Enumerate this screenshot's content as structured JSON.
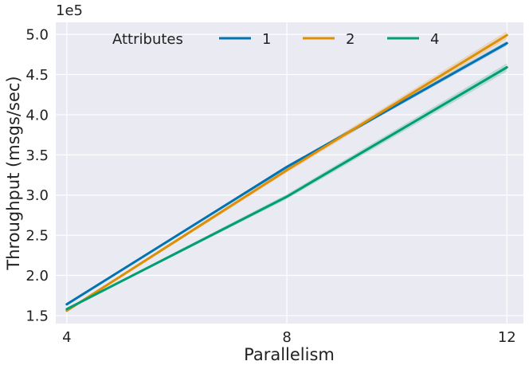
{
  "chart_data": {
    "type": "line",
    "title": "",
    "xlabel": "Parallelism",
    "ylabel": "Throughput (msgs/sec)",
    "y_multiplier_label": "1e5",
    "x": [
      4,
      8,
      12
    ],
    "x_ticks": [
      "4",
      "8",
      "12"
    ],
    "xlim": [
      3.8,
      12.3
    ],
    "y_ticks": [
      {
        "value": 1.5,
        "label": "1.5"
      },
      {
        "value": 2.0,
        "label": "2.0"
      },
      {
        "value": 2.5,
        "label": "2.5"
      },
      {
        "value": 3.0,
        "label": "3.0"
      },
      {
        "value": 3.5,
        "label": "3.5"
      },
      {
        "value": 4.0,
        "label": "4.0"
      },
      {
        "value": 4.5,
        "label": "4.5"
      },
      {
        "value": 5.0,
        "label": "5.0"
      }
    ],
    "ylim": [
      1.4,
      5.15
    ],
    "grid": true,
    "legend_title": "Attributes",
    "legend_position": "top",
    "series": [
      {
        "name": "1",
        "color": "#0173b2",
        "values": [
          1.64,
          3.35,
          4.89
        ],
        "band": [
          0.01,
          0.02,
          0.03
        ]
      },
      {
        "name": "2",
        "color": "#de8f05",
        "values": [
          1.56,
          3.31,
          4.99
        ],
        "band": [
          0.01,
          0.03,
          0.05
        ]
      },
      {
        "name": "4",
        "color": "#029e73",
        "values": [
          1.58,
          2.98,
          4.59
        ],
        "band": [
          0.01,
          0.03,
          0.05
        ]
      }
    ]
  }
}
